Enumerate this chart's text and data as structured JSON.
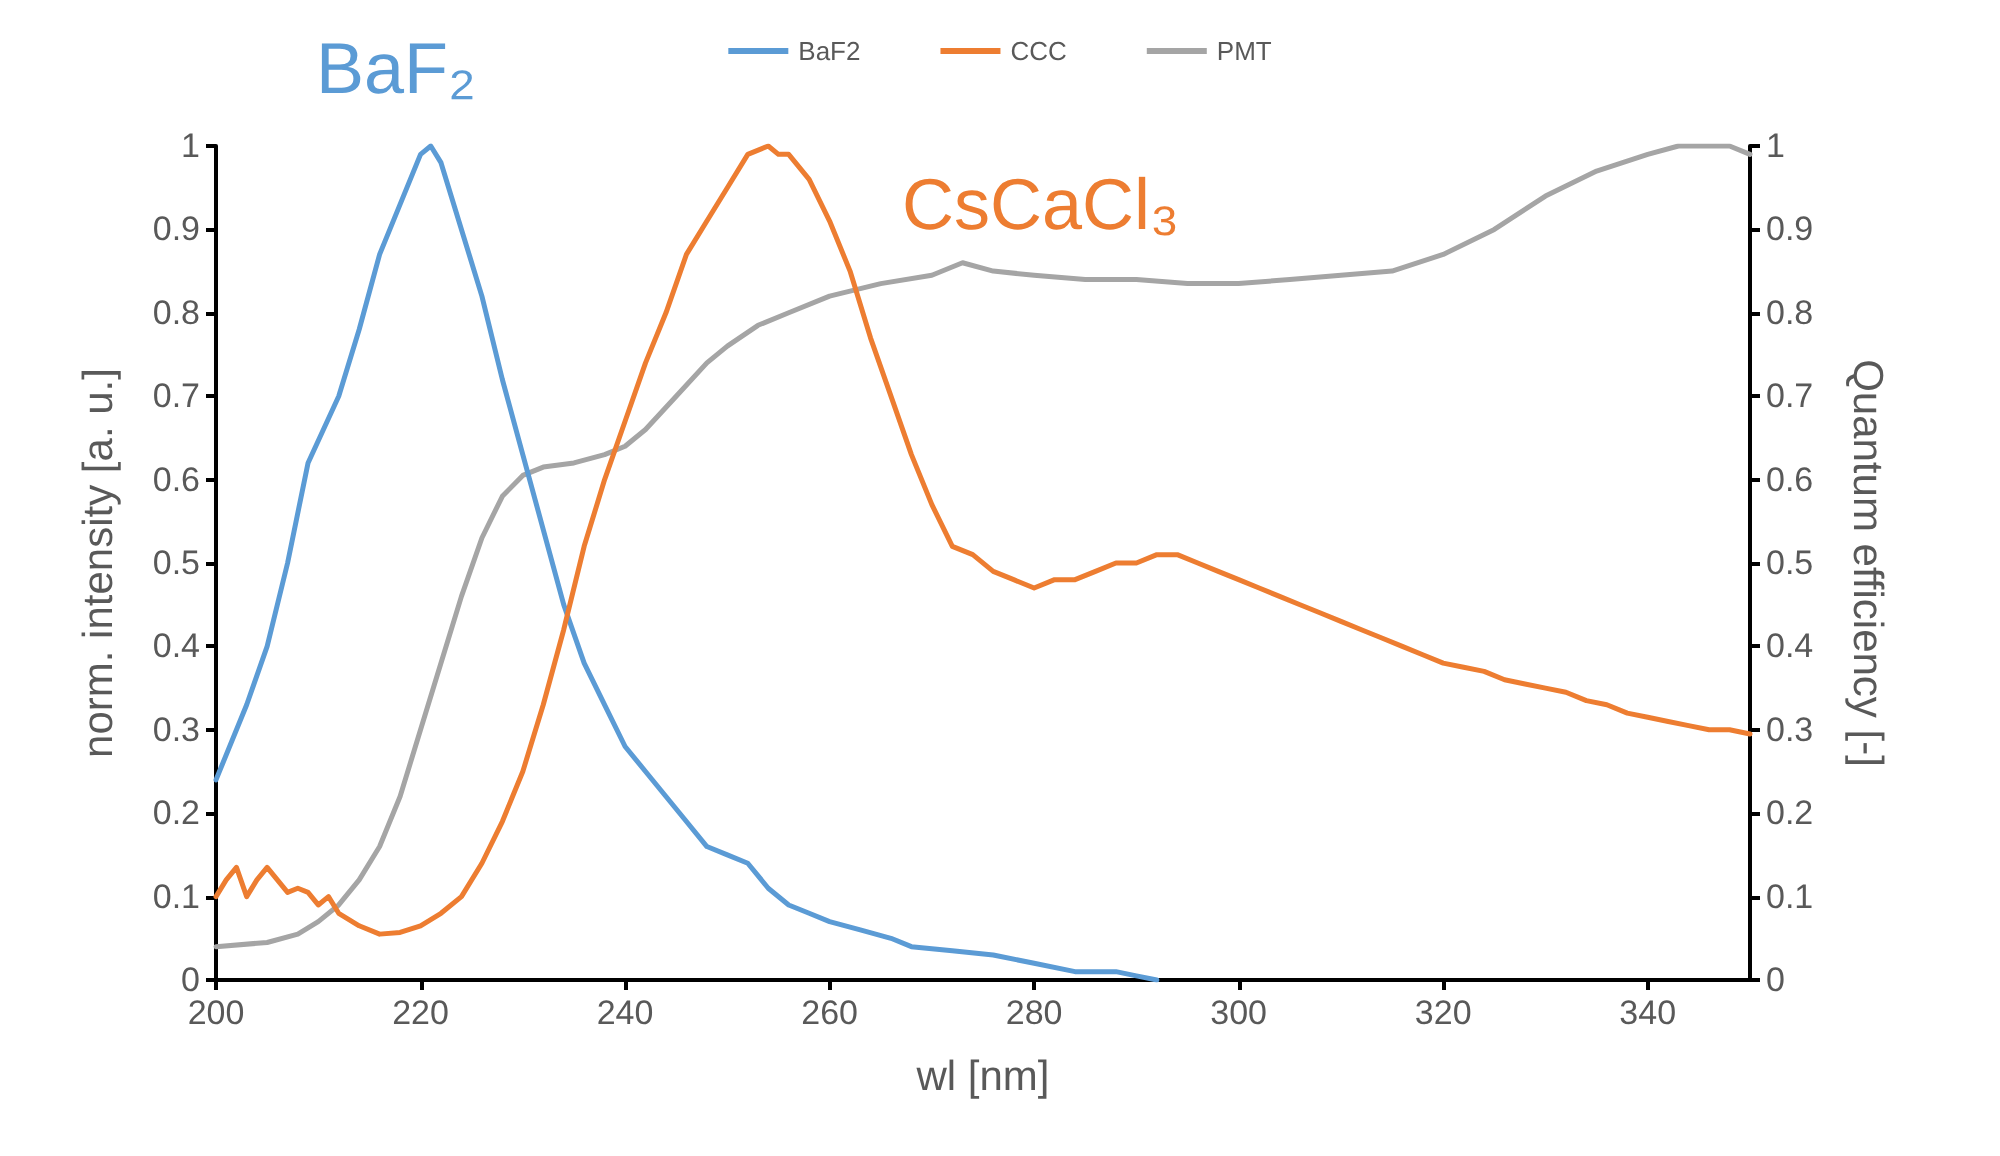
{
  "chart_data": {
    "type": "line",
    "xlabel": "wl [nm]",
    "ylabel": "norm. intensity [a. u.]",
    "y2label": "Quantum efficiency [-]",
    "xlim": [
      200,
      350
    ],
    "xticks": [
      200,
      220,
      240,
      260,
      280,
      300,
      320,
      340
    ],
    "ylim": [
      0,
      1
    ],
    "yticks": [
      0,
      0.1,
      0.2,
      0.3,
      0.4,
      0.5,
      0.6,
      0.7,
      0.8,
      0.9,
      1
    ],
    "y2lim": [
      0,
      1
    ],
    "y2ticks": [
      0,
      0.1,
      0.2,
      0.3,
      0.4,
      0.5,
      0.6,
      0.7,
      0.8,
      0.9,
      1
    ],
    "grid": false,
    "legend": "top",
    "marker": "none",
    "annotations": [
      "BaF₂",
      "CsCaCl₃"
    ],
    "series": [
      {
        "name": "BaF2",
        "color": "#5b9bd5",
        "x": [
          200,
          203,
          205,
          207,
          209,
          212,
          214,
          216,
          218,
          220,
          221,
          222,
          224,
          226,
          228,
          230,
          232,
          234,
          236,
          238,
          240,
          242,
          244,
          246,
          248,
          250,
          252,
          254,
          256,
          258,
          260,
          263,
          266,
          268,
          272,
          276,
          280,
          284,
          288,
          290,
          292
        ],
        "values": [
          0.24,
          0.33,
          0.4,
          0.5,
          0.62,
          0.7,
          0.78,
          0.87,
          0.93,
          0.99,
          1,
          0.98,
          0.9,
          0.82,
          0.72,
          0.63,
          0.54,
          0.45,
          0.38,
          0.33,
          0.28,
          0.25,
          0.22,
          0.19,
          0.16,
          0.15,
          0.14,
          0.11,
          0.09,
          0.08,
          0.07,
          0.06,
          0.05,
          0.04,
          0.035,
          0.03,
          0.02,
          0.01,
          0.01,
          0.005,
          0
        ]
      },
      {
        "name": "CCC",
        "color": "#ed7d31",
        "x": [
          200,
          201,
          202,
          203,
          204,
          205,
          206,
          207,
          208,
          209,
          210,
          211,
          212,
          214,
          216,
          218,
          220,
          222,
          224,
          226,
          228,
          230,
          232,
          234,
          236,
          238,
          240,
          242,
          244,
          246,
          248,
          250,
          252,
          254,
          255,
          256,
          258,
          260,
          262,
          264,
          266,
          268,
          270,
          272,
          274,
          276,
          278,
          280,
          282,
          284,
          286,
          288,
          290,
          292,
          294,
          296,
          298,
          300,
          302,
          304,
          306,
          308,
          310,
          312,
          314,
          316,
          318,
          320,
          322,
          324,
          326,
          328,
          330,
          332,
          334,
          336,
          338,
          340,
          342,
          344,
          346,
          348,
          350
        ],
        "values": [
          0.1,
          0.12,
          0.135,
          0.1,
          0.12,
          0.135,
          0.12,
          0.105,
          0.11,
          0.105,
          0.09,
          0.1,
          0.08,
          0.065,
          0.055,
          0.057,
          0.065,
          0.08,
          0.1,
          0.14,
          0.19,
          0.25,
          0.33,
          0.42,
          0.52,
          0.6,
          0.67,
          0.74,
          0.8,
          0.87,
          0.91,
          0.95,
          0.99,
          1,
          0.99,
          0.99,
          0.96,
          0.91,
          0.85,
          0.77,
          0.7,
          0.63,
          0.57,
          0.52,
          0.51,
          0.49,
          0.48,
          0.47,
          0.48,
          0.48,
          0.49,
          0.5,
          0.5,
          0.51,
          0.51,
          0.5,
          0.49,
          0.48,
          0.47,
          0.46,
          0.45,
          0.44,
          0.43,
          0.42,
          0.41,
          0.4,
          0.39,
          0.38,
          0.375,
          0.37,
          0.36,
          0.355,
          0.35,
          0.345,
          0.335,
          0.33,
          0.32,
          0.315,
          0.31,
          0.305,
          0.3,
          0.3,
          0.295
        ]
      },
      {
        "name": "PMT",
        "color": "#a5a5a5",
        "axis": "y2",
        "x": [
          200,
          205,
          208,
          210,
          212,
          214,
          216,
          218,
          220,
          222,
          224,
          226,
          228,
          230,
          232,
          235,
          238,
          240,
          242,
          245,
          248,
          250,
          253,
          256,
          260,
          265,
          270,
          273,
          276,
          280,
          285,
          290,
          295,
          300,
          305,
          310,
          315,
          320,
          325,
          330,
          335,
          340,
          343,
          348,
          350
        ],
        "values": [
          0.04,
          0.045,
          0.055,
          0.07,
          0.09,
          0.12,
          0.16,
          0.22,
          0.3,
          0.38,
          0.46,
          0.53,
          0.58,
          0.605,
          0.615,
          0.62,
          0.63,
          0.64,
          0.66,
          0.7,
          0.74,
          0.76,
          0.785,
          0.8,
          0.82,
          0.835,
          0.845,
          0.86,
          0.85,
          0.845,
          0.84,
          0.84,
          0.835,
          0.835,
          0.84,
          0.845,
          0.85,
          0.87,
          0.9,
          0.94,
          0.97,
          0.99,
          1,
          1,
          0.99
        ]
      }
    ]
  }
}
